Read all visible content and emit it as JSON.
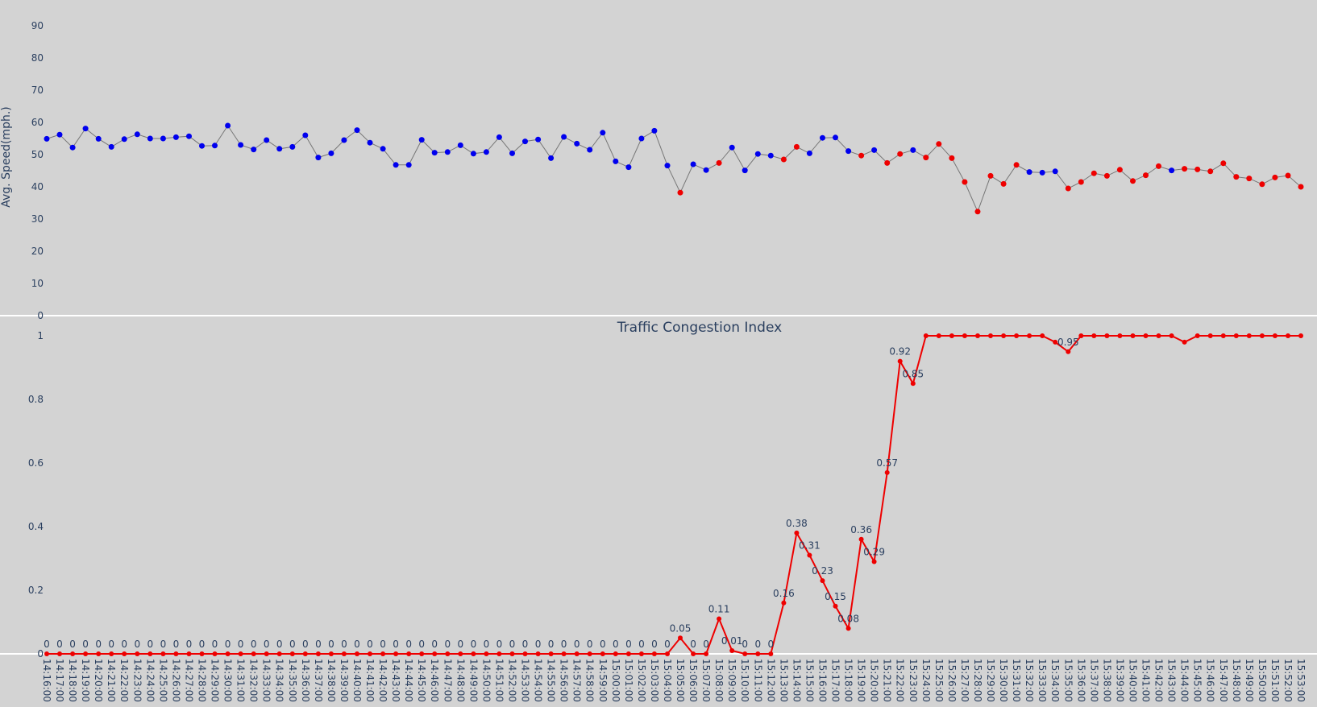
{
  "chart_data": [
    {
      "type": "scatter",
      "title": "",
      "ylabel": "Avg. Speed(mph.)",
      "ylim": [
        0,
        95
      ],
      "yticks": [
        0,
        10,
        20,
        30,
        40,
        50,
        60,
        70,
        80,
        90
      ],
      "x": [
        "14:16:00",
        "14:17:00",
        "14:18:00",
        "14:19:00",
        "14:20:00",
        "14:21:00",
        "14:22:00",
        "14:23:00",
        "14:24:00",
        "14:25:00",
        "14:26:00",
        "14:27:00",
        "14:28:00",
        "14:29:00",
        "14:30:00",
        "14:31:00",
        "14:32:00",
        "14:33:00",
        "14:34:00",
        "14:35:00",
        "14:36:00",
        "14:37:00",
        "14:38:00",
        "14:39:00",
        "14:40:00",
        "14:41:00",
        "14:42:00",
        "14:43:00",
        "14:44:00",
        "14:45:00",
        "14:46:00",
        "14:47:00",
        "14:48:00",
        "14:49:00",
        "14:50:00",
        "14:51:00",
        "14:52:00",
        "14:53:00",
        "14:54:00",
        "14:55:00",
        "14:56:00",
        "14:57:00",
        "14:58:00",
        "14:59:00",
        "15:00:00",
        "15:01:00",
        "15:02:00",
        "15:03:00",
        "15:04:00",
        "15:05:00",
        "15:06:00",
        "15:07:00",
        "15:08:00",
        "15:09:00",
        "15:10:00",
        "15:11:00",
        "15:12:00",
        "15:13:00",
        "15:14:00",
        "15:15:00",
        "15:16:00",
        "15:17:00",
        "15:18:00",
        "15:19:00",
        "15:20:00",
        "15:21:00",
        "15:22:00",
        "15:23:00",
        "15:24:00",
        "15:25:00",
        "15:26:00",
        "15:27:00",
        "15:28:00",
        "15:29:00",
        "15:30:00",
        "15:31:00",
        "15:32:00",
        "15:33:00",
        "15:34:00",
        "15:35:00",
        "15:36:00",
        "15:37:00",
        "15:38:00",
        "15:39:00",
        "15:40:00",
        "15:41:00",
        "15:42:00",
        "15:43:00",
        "15:44:00",
        "15:45:00",
        "15:46:00",
        "15:47:00",
        "15:48:00",
        "15:49:00",
        "15:50:00",
        "15:51:00",
        "15:52:00",
        "15:53:00"
      ],
      "values": [
        54.9,
        56.2,
        52.2,
        58.1,
        54.9,
        52.4,
        54.8,
        56.3,
        55.0,
        55.0,
        55.4,
        55.7,
        52.7,
        52.8,
        59.0,
        53.0,
        51.6,
        54.5,
        51.8,
        52.4,
        56.0,
        49.1,
        50.4,
        54.5,
        57.6,
        53.7,
        51.8,
        46.8,
        46.8,
        54.6,
        50.6,
        50.8,
        52.9,
        50.3,
        50.8,
        55.4,
        50.4,
        54.1,
        54.7,
        48.9,
        55.5,
        53.4,
        51.5,
        56.8,
        47.9,
        46.1,
        55.0,
        57.4,
        46.6,
        38.2,
        47.0,
        45.2,
        47.4,
        52.2,
        45.1,
        50.2,
        49.7,
        48.5,
        52.4,
        50.4,
        55.2,
        55.3,
        51.1,
        49.7,
        51.4,
        47.4,
        50.2,
        51.4,
        49.1,
        53.3,
        48.9,
        41.5,
        32.3,
        43.4,
        40.9,
        46.8,
        44.6,
        44.4,
        44.8,
        39.5,
        41.5,
        44.2,
        43.4,
        45.3,
        41.8,
        43.6,
        46.4,
        45.1,
        45.6,
        45.4,
        44.8,
        47.3,
        43.1,
        42.6,
        40.8,
        42.9,
        43.5,
        40.0
      ],
      "point_colors": [
        "#0000ee",
        "#0000ee",
        "#0000ee",
        "#0000ee",
        "#0000ee",
        "#0000ee",
        "#0000ee",
        "#0000ee",
        "#0000ee",
        "#0000ee",
        "#0000ee",
        "#0000ee",
        "#0000ee",
        "#0000ee",
        "#0000ee",
        "#0000ee",
        "#0000ee",
        "#0000ee",
        "#0000ee",
        "#0000ee",
        "#0000ee",
        "#0000ee",
        "#0000ee",
        "#0000ee",
        "#0000ee",
        "#0000ee",
        "#0000ee",
        "#0000ee",
        "#0000ee",
        "#0000ee",
        "#0000ee",
        "#0000ee",
        "#0000ee",
        "#0000ee",
        "#0000ee",
        "#0000ee",
        "#0000ee",
        "#0000ee",
        "#0000ee",
        "#0000ee",
        "#0000ee",
        "#0000ee",
        "#0000ee",
        "#0000ee",
        "#0000ee",
        "#0000ee",
        "#0000ee",
        "#0000ee",
        "#0000ee",
        "#ee0000",
        "#0000ee",
        "#0000ee",
        "#ee0000",
        "#0000ee",
        "#0000ee",
        "#0000ee",
        "#0000ee",
        "#ee0000",
        "#ee0000",
        "#0000ee",
        "#0000ee",
        "#0000ee",
        "#0000ee",
        "#ee0000",
        "#0000ee",
        "#ee0000",
        "#ee0000",
        "#0000ee",
        "#ee0000",
        "#ee0000",
        "#ee0000",
        "#ee0000",
        "#ee0000",
        "#ee0000",
        "#ee0000",
        "#ee0000",
        "#0000ee",
        "#0000ee",
        "#0000ee",
        "#ee0000",
        "#ee0000",
        "#ee0000",
        "#ee0000",
        "#ee0000",
        "#ee0000",
        "#ee0000",
        "#ee0000",
        "#0000ee",
        "#ee0000",
        "#ee0000",
        "#ee0000",
        "#ee0000",
        "#ee0000",
        "#ee0000",
        "#ee0000",
        "#ee0000",
        "#ee0000",
        "#ee0000"
      ],
      "line_color": "#777777"
    },
    {
      "type": "line",
      "title": "Traffic Congestion Index",
      "ylim": [
        0,
        1.02
      ],
      "yticks": [
        "0",
        "0.2",
        "0.4",
        "0.6",
        "0.8",
        "1"
      ],
      "x_labels": "same as speed chart",
      "values": [
        0,
        0,
        0,
        0,
        0,
        0,
        0,
        0,
        0,
        0,
        0,
        0,
        0,
        0,
        0,
        0,
        0,
        0,
        0,
        0,
        0,
        0,
        0,
        0,
        0,
        0,
        0,
        0,
        0,
        0,
        0,
        0,
        0,
        0,
        0,
        0,
        0,
        0,
        0,
        0,
        0,
        0,
        0,
        0,
        0,
        0,
        0,
        0,
        0,
        0.05,
        0,
        0,
        0.11,
        0.01,
        0,
        0,
        0,
        0.16,
        0.38,
        0.31,
        0.23,
        0.15,
        0.08,
        0.36,
        0.29,
        0.57,
        0.92,
        0.85,
        1,
        1,
        1,
        1,
        1,
        1,
        1,
        1,
        1,
        1,
        0.98,
        0.95,
        1,
        1,
        1,
        1,
        1,
        1,
        1,
        1,
        0.98,
        1,
        1,
        1,
        1,
        1,
        1,
        1,
        1,
        1
      ],
      "data_labels": [
        "0",
        "0",
        "0",
        "0",
        "0",
        "0",
        "0",
        "0",
        "0",
        "0",
        "0",
        "0",
        "0",
        "0",
        "0",
        "0",
        "0",
        "0",
        "0",
        "0",
        "0",
        "0",
        "0",
        "0",
        "0",
        "0",
        "0",
        "0",
        "0",
        "0",
        "0",
        "0",
        "0",
        "0",
        "0",
        "0",
        "0",
        "0",
        "0",
        "0",
        "0",
        "0",
        "0",
        "0",
        "0",
        "0",
        "0",
        "0",
        "0",
        "0.05",
        "0",
        "0",
        "0.11",
        "0.01",
        "0",
        "0",
        "0",
        "0.16",
        "0.38",
        "0.31",
        "0.23",
        "0.15",
        "0.08",
        "0.36",
        "0.29",
        "0.57",
        "0.92",
        "0.85",
        "",
        "",
        "",
        "",
        "",
        "",
        "",
        "",
        "",
        "",
        "",
        "0.95",
        "",
        "",
        "",
        "",
        "",
        "",
        "",
        "",
        "",
        "",
        "",
        "",
        "",
        "",
        "",
        "",
        "",
        ""
      ],
      "line_color": "#ee0000"
    }
  ]
}
